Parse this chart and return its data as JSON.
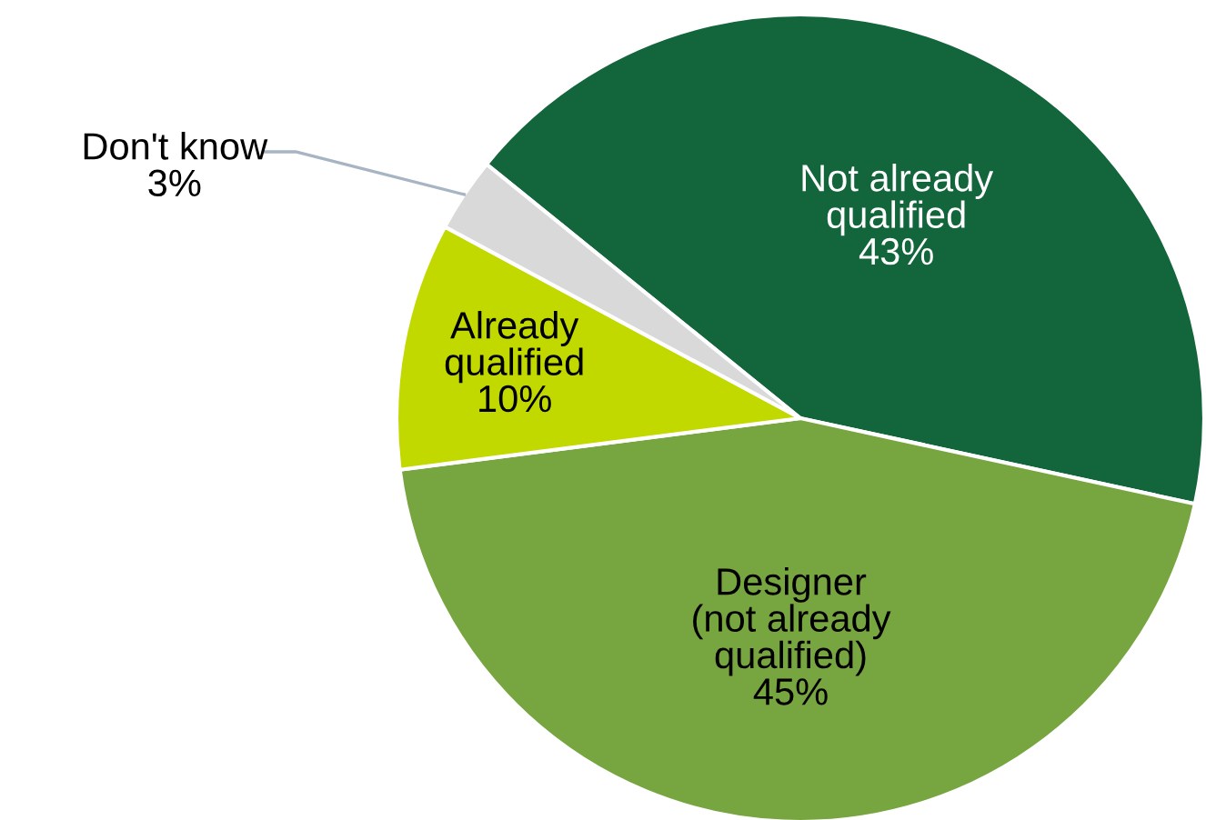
{
  "chart_data": {
    "type": "pie",
    "categories": [
      "Not already\nqualified",
      "Designer\n(not already\nqualified)",
      "Already\nqualified",
      "Don't know"
    ],
    "values": [
      43,
      45,
      10,
      3
    ],
    "colors": [
      "#13663b",
      "#77a540",
      "#c2d900",
      "#d9d9d9"
    ],
    "value_labels": [
      "43%",
      "45%",
      "10%",
      "3%"
    ],
    "legend": false
  }
}
